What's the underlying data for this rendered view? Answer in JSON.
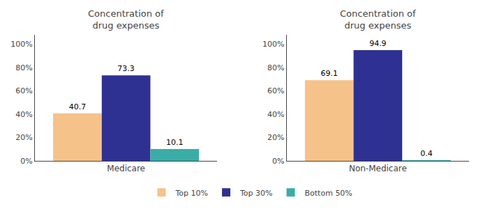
{
  "chart_data": [
    {
      "type": "bar",
      "title": "Concentration of\ndrug expenses",
      "categories": [
        "Medicare"
      ],
      "series": [
        {
          "name": "Top 10%",
          "color": "#F5C28A",
          "values": [
            40.7
          ]
        },
        {
          "name": "Top 30%",
          "color": "#2E3191",
          "values": [
            73.3
          ]
        },
        {
          "name": "Bottom 50%",
          "color": "#3AADA8",
          "values": [
            10.1
          ]
        }
      ],
      "ylim": [
        0,
        108
      ],
      "yticks": [
        {
          "value": 0,
          "label": "0%"
        },
        {
          "value": 20,
          "label": "20%"
        },
        {
          "value": 40,
          "label": "40%"
        },
        {
          "value": 60,
          "label": "60%"
        },
        {
          "value": 80,
          "label": "80%"
        },
        {
          "value": 100,
          "label": "100%"
        }
      ],
      "grid": false,
      "data_labels": true,
      "legend": "bottom"
    },
    {
      "type": "bar",
      "title": "Concentration of\ndrug expenses",
      "categories": [
        "Non-Medicare"
      ],
      "series": [
        {
          "name": "Top 10%",
          "color": "#F5C28A",
          "values": [
            69.1
          ]
        },
        {
          "name": "Top 30%",
          "color": "#2E3191",
          "values": [
            94.9
          ]
        },
        {
          "name": "Bottom 50%",
          "color": "#3AADA8",
          "values": [
            0.4
          ]
        }
      ],
      "ylim": [
        0,
        108
      ],
      "yticks": [
        {
          "value": 0,
          "label": "0%"
        },
        {
          "value": 20,
          "label": "20%"
        },
        {
          "value": 40,
          "label": "40%"
        },
        {
          "value": 60,
          "label": "60%"
        },
        {
          "value": 80,
          "label": "80%"
        },
        {
          "value": 100,
          "label": "100%"
        }
      ],
      "grid": false,
      "data_labels": true,
      "legend": "bottom"
    }
  ]
}
